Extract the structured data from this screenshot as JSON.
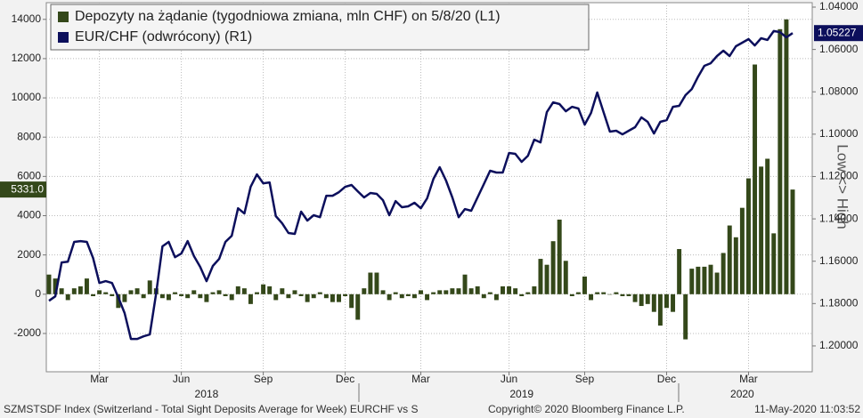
{
  "chart_data": {
    "type": "combo",
    "categories": [
      null,
      null,
      null,
      null,
      null,
      null,
      null,
      null,
      "Mar",
      null,
      null,
      null,
      null,
      null,
      null,
      null,
      null,
      null,
      null,
      null,
      null,
      "Jun",
      null,
      null,
      null,
      null,
      null,
      null,
      null,
      null,
      null,
      null,
      null,
      null,
      "Sep",
      null,
      null,
      null,
      null,
      null,
      null,
      null,
      null,
      null,
      null,
      null,
      null,
      "Dec",
      null,
      null,
      null,
      null,
      null,
      null,
      null,
      null,
      null,
      null,
      null,
      "Mar",
      null,
      null,
      null,
      null,
      null,
      null,
      null,
      null,
      null,
      null,
      null,
      null,
      null,
      "Jun",
      null,
      null,
      null,
      null,
      null,
      null,
      null,
      null,
      null,
      null,
      null,
      "Sep",
      null,
      null,
      null,
      null,
      null,
      null,
      null,
      null,
      null,
      null,
      null,
      null,
      "Dec",
      null,
      null,
      null,
      null,
      null,
      null,
      null,
      null,
      null,
      null,
      null,
      null,
      "Mar",
      null,
      null,
      null,
      null,
      null,
      null,
      null
    ],
    "year_categories": [
      null,
      null,
      null,
      null,
      null,
      null,
      null,
      null,
      null,
      null,
      null,
      null,
      null,
      null,
      null,
      null,
      null,
      null,
      null,
      null,
      null,
      null,
      null,
      null,
      null,
      "2018",
      null,
      null,
      null,
      null,
      null,
      null,
      null,
      null,
      null,
      null,
      null,
      null,
      null,
      null,
      null,
      null,
      null,
      null,
      null,
      null,
      null,
      null,
      null,
      null,
      null,
      null,
      null,
      null,
      null,
      null,
      null,
      null,
      null,
      null,
      null,
      null,
      null,
      null,
      null,
      null,
      null,
      null,
      null,
      null,
      null,
      null,
      null,
      null,
      null,
      "2019",
      null,
      null,
      null,
      null,
      null,
      null,
      null,
      null,
      null,
      null,
      null,
      null,
      null,
      null,
      null,
      null,
      null,
      null,
      null,
      null,
      null,
      null,
      null,
      null,
      null,
      null,
      null,
      null,
      null,
      null,
      null,
      null,
      null,
      null,
      "2020",
      null,
      null,
      null,
      null,
      null,
      null,
      null,
      null
    ],
    "series": [
      {
        "name": "Depozyty na żądanie (tygodniowa zmiana, mln CHF) on 5/8/20 (L1)",
        "type": "bar",
        "axis": "y",
        "color": "#34481a",
        "last_label": "5331.0",
        "values": [
          1000,
          800,
          300,
          -300,
          300,
          400,
          800,
          -100,
          200,
          100,
          -100,
          -700,
          -400,
          200,
          300,
          -200,
          700,
          300,
          -200,
          -300,
          100,
          -100,
          -200,
          200,
          -200,
          -400,
          100,
          200,
          -100,
          -300,
          400,
          300,
          -500,
          100,
          500,
          400,
          -300,
          300,
          -200,
          200,
          -100,
          -400,
          -200,
          100,
          -200,
          -400,
          -400,
          -100,
          -700,
          -1300,
          300,
          1100,
          1100,
          200,
          -300,
          100,
          -200,
          -100,
          -200,
          200,
          -300,
          100,
          200,
          200,
          300,
          300,
          1000,
          300,
          400,
          -200,
          100,
          -300,
          400,
          400,
          300,
          -100,
          100,
          400,
          1800,
          1500,
          2700,
          3800,
          1700,
          -100,
          100,
          900,
          -300,
          100,
          100,
          0,
          100,
          -100,
          -100,
          -400,
          -600,
          -500,
          -900,
          -1600,
          -700,
          -900,
          2300,
          -2300,
          1300,
          1400,
          1400,
          1500,
          1100,
          2100,
          3500,
          2900,
          4400,
          5900,
          11700,
          6500,
          6900,
          3100,
          13500,
          14000,
          5331
        ]
      },
      {
        "name": "EUR/CHF (odwrócony) (R1)",
        "type": "line",
        "axis": "y2",
        "color": "#0c0f5c",
        "last_label": "1.05227",
        "values": [
          1.1787,
          1.1766,
          1.1606,
          1.1602,
          1.1509,
          1.1505,
          1.1509,
          1.1585,
          1.1703,
          1.1694,
          1.1703,
          1.177,
          1.1845,
          1.1967,
          1.1967,
          1.1955,
          1.1946,
          1.1753,
          1.153,
          1.1509,
          1.1581,
          1.1564,
          1.1505,
          1.1576,
          1.1627,
          1.1694,
          1.1622,
          1.1589,
          1.1509,
          1.148,
          1.135,
          1.1375,
          1.1249,
          1.119,
          1.1232,
          1.1228,
          1.1387,
          1.1421,
          1.1467,
          1.1471,
          1.1366,
          1.1408,
          1.1383,
          1.1392,
          1.1291,
          1.1291,
          1.1274,
          1.1249,
          1.124,
          1.127,
          1.1299,
          1.1278,
          1.1282,
          1.1312,
          1.1383,
          1.1316,
          1.1345,
          1.1341,
          1.1324,
          1.135,
          1.1303,
          1.1211,
          1.1156,
          1.1219,
          1.1299,
          1.1392,
          1.1354,
          1.1362,
          1.1299,
          1.1236,
          1.1173,
          1.1181,
          1.1181,
          1.1089,
          1.1093,
          1.1131,
          1.1102,
          1.1026,
          1.1039,
          1.0896,
          1.085,
          1.0858,
          1.0892,
          1.0871,
          1.0879,
          1.0955,
          1.09,
          1.0803,
          1.0896,
          1.0988,
          1.0984,
          1.1001,
          1.0984,
          1.0967,
          1.0921,
          1.0942,
          1.0997,
          1.0942,
          1.0934,
          1.0871,
          1.0866,
          1.0816,
          1.0787,
          1.0728,
          1.0677,
          1.0665,
          1.0631,
          1.0606,
          1.0631,
          1.0585,
          1.0568,
          1.0551,
          1.0581,
          1.0547,
          1.0555,
          1.0513,
          1.0518,
          1.0543,
          1.05227
        ]
      }
    ],
    "ylim": [
      -3950,
      14850
    ],
    "yticks": [
      -2000,
      0,
      2000,
      4000,
      6000,
      8000,
      10000,
      12000,
      14000
    ],
    "y2lim": [
      1.0379,
      1.2122
    ],
    "y2_inverted": true,
    "y2ticks": [
      {
        "value": 1.04,
        "label": "1.04000"
      },
      {
        "value": 1.06,
        "label": "1.06000"
      },
      {
        "value": 1.08,
        "label": "1.08000"
      },
      {
        "value": 1.1,
        "label": "1.10000"
      },
      {
        "value": 1.12,
        "label": "1.12000"
      },
      {
        "value": 1.14,
        "label": "1.14000"
      },
      {
        "value": 1.16,
        "label": "1.16000"
      },
      {
        "value": 1.18,
        "label": "1.18000"
      },
      {
        "value": 1.2,
        "label": "1.20000"
      }
    ],
    "y2_label": "Low <> High",
    "grid": true,
    "legend_position": "top-left",
    "footer": {
      "source": "SZMSTSDF Index (Switzerland - Total Sight Deposits Average for Week) EURCHF vs S",
      "copyright": "Copyright© 2020 Bloomberg Finance L.P.",
      "timestamp": "11-May-2020 11:03:52"
    }
  }
}
